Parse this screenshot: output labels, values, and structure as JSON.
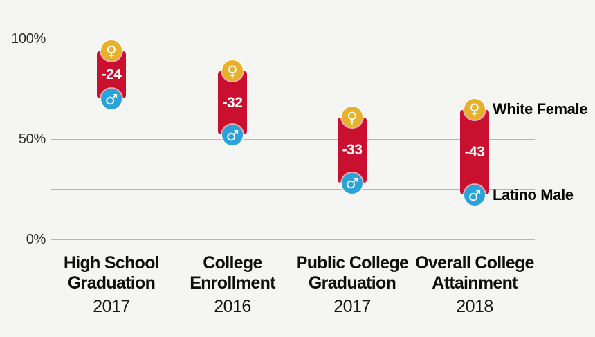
{
  "chart_data": {
    "type": "bar",
    "subtype": "gap-range-bars-with-markers",
    "title": "",
    "categories": [
      "High School Graduation",
      "College Enrollment",
      "Public College Graduation",
      "Overall College Attainment"
    ],
    "category_lines": [
      [
        "High School",
        "Graduation"
      ],
      [
        "College",
        "Enrollment"
      ],
      [
        "Public College",
        "Graduation"
      ],
      [
        "Overall College",
        "Attainment"
      ]
    ],
    "category_years": [
      "2017",
      "2016",
      "2017",
      "2018"
    ],
    "series": [
      {
        "name": "White Female",
        "symbol": "female",
        "marker_color": "#e8b12c",
        "values": [
          94,
          84,
          61,
          65
        ]
      },
      {
        "name": "Latino Male",
        "symbol": "male",
        "marker_color": "#2ba3da",
        "values": [
          70,
          52,
          28,
          22
        ]
      }
    ],
    "gap_labels": [
      "-24",
      "-32",
      "-33",
      "-43"
    ],
    "gap_values": [
      -24,
      -32,
      -33,
      -43
    ],
    "bar_color": "#c9102f",
    "yticks": [
      {
        "label": "100%",
        "value": 100
      },
      {
        "label": "50%",
        "value": 50
      },
      {
        "label": "0%",
        "value": 0
      }
    ],
    "gridline_values": [
      100,
      75,
      50,
      25,
      0
    ],
    "ylim": [
      0,
      100
    ],
    "grid": true,
    "legend_position": "right",
    "background_color": "#f5f5f3",
    "gridline_color": "#b7b6b3",
    "label_text_color": "#0e0e0e"
  },
  "icons": {
    "female_icon": "♀",
    "male_icon": "♂"
  }
}
